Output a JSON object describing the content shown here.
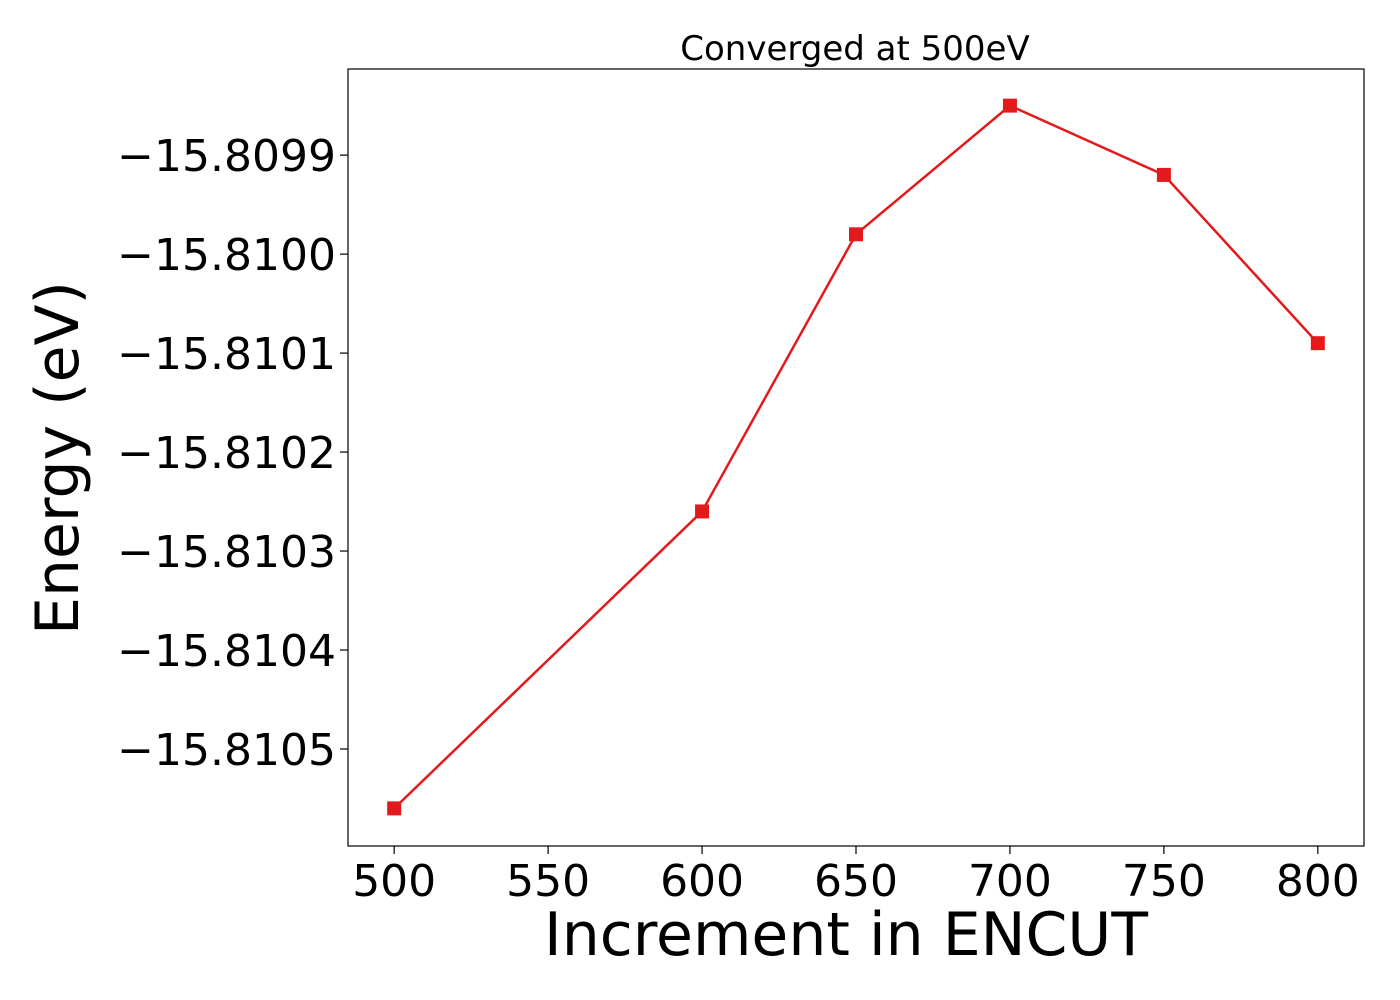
{
  "chart_data": {
    "type": "line",
    "title": "Converged at 500eV",
    "xlabel": "Increment in ENCUT",
    "ylabel": "Energy (eV)",
    "x": [
      500,
      600,
      650,
      700,
      750,
      800
    ],
    "series": [
      {
        "values": [
          -15.81056,
          -15.81026,
          -15.80998,
          -15.80985,
          -15.80992,
          -15.81009
        ]
      }
    ],
    "xticks": [
      500,
      550,
      600,
      650,
      700,
      750,
      800
    ],
    "xtick_labels": [
      "500",
      "550",
      "600",
      "650",
      "700",
      "750",
      "800"
    ],
    "yticks": [
      -15.8105,
      -15.8104,
      -15.8103,
      -15.8102,
      -15.8101,
      -15.81,
      -15.8099
    ],
    "ytick_labels": [
      "−15.8105",
      "−15.8104",
      "−15.8103",
      "−15.8102",
      "−15.8101",
      "−15.8100",
      "−15.8099"
    ],
    "xlim": [
      485,
      815
    ],
    "ylim": [
      -15.810598,
      -15.809813
    ],
    "grid": false,
    "marker": "square",
    "line_color": "#e31a1c"
  }
}
